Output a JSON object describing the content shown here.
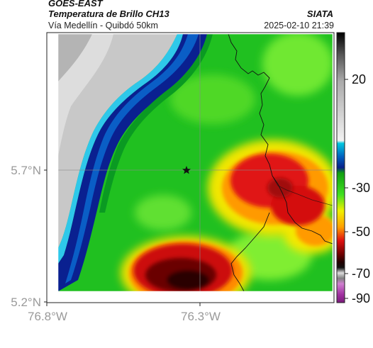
{
  "header": {
    "satellite": "GOES-EAST",
    "product": "Temperatura de Brillo CH13",
    "subtitle": "Vía Medellín - Quibdó 50km",
    "org": "SIATA",
    "datetime": "2025-02-10 21:39"
  },
  "map": {
    "lat_labels": [
      "5.7°N",
      "5.2°N"
    ],
    "lon_labels": [
      "76.8°W",
      "76.3°W"
    ],
    "marker": "star-marker"
  },
  "colorbar": {
    "ticks": [
      "20",
      "-30",
      "-50",
      "-70",
      "-90"
    ],
    "colors": {
      "cloud_cold": "#2a0808",
      "cloud_deep": "#e01010",
      "mid": "#ffee00",
      "green": "#18c018",
      "lime": "#88ee22",
      "navy": "#081a88",
      "cyan": "#00d4e8",
      "magenta": "#c040c0",
      "warm_gray": "#c8c8c8"
    }
  }
}
